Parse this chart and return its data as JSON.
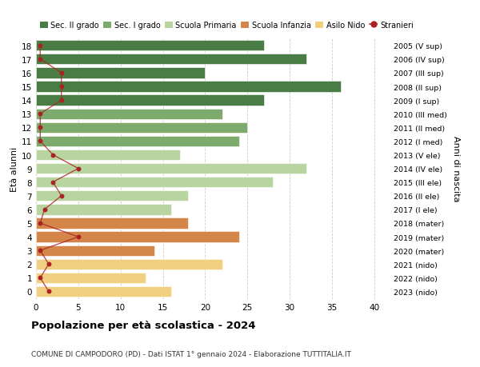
{
  "ages": [
    18,
    17,
    16,
    15,
    14,
    13,
    12,
    11,
    10,
    9,
    8,
    7,
    6,
    5,
    4,
    3,
    2,
    1,
    0
  ],
  "values": [
    27,
    32,
    20,
    36,
    27,
    22,
    25,
    24,
    17,
    32,
    28,
    18,
    16,
    18,
    24,
    14,
    22,
    13,
    16
  ],
  "stranieri": [
    0.5,
    0.5,
    3,
    3,
    3,
    0.5,
    0.5,
    0.5,
    2,
    5,
    2,
    3,
    1,
    0.5,
    5,
    0.5,
    1.5,
    0.5,
    1.5
  ],
  "bar_colors": [
    "#4a7c45",
    "#4a7c45",
    "#4a7c45",
    "#4a7c45",
    "#4a7c45",
    "#7dab6e",
    "#7dab6e",
    "#7dab6e",
    "#b8d4a0",
    "#b8d4a0",
    "#b8d4a0",
    "#b8d4a0",
    "#b8d4a0",
    "#d4854a",
    "#d4854a",
    "#d4854a",
    "#f0d080",
    "#f0d080",
    "#f0d080"
  ],
  "right_labels": [
    "2005 (V sup)",
    "2006 (IV sup)",
    "2007 (III sup)",
    "2008 (II sup)",
    "2009 (I sup)",
    "2010 (III med)",
    "2011 (II med)",
    "2012 (I med)",
    "2013 (V ele)",
    "2014 (IV ele)",
    "2015 (III ele)",
    "2016 (II ele)",
    "2017 (I ele)",
    "2018 (mater)",
    "2019 (mater)",
    "2020 (mater)",
    "2021 (nido)",
    "2022 (nido)",
    "2023 (nido)"
  ],
  "legend_labels": [
    "Sec. II grado",
    "Sec. I grado",
    "Scuola Primaria",
    "Scuola Infanzia",
    "Asilo Nido",
    "Stranieri"
  ],
  "legend_colors": [
    "#4a7c45",
    "#7dab6e",
    "#b8d4a0",
    "#d4854a",
    "#f0d080",
    "#aa2222"
  ],
  "xlabel_left": "Età alunni",
  "xlabel_right": "Anni di nascita",
  "title": "Popolazione per età scolastica - 2024",
  "subtitle": "COMUNE DI CAMPODORO (PD) - Dati ISTAT 1° gennaio 2024 - Elaborazione TUTTITALIA.IT",
  "xlim": [
    0,
    42
  ],
  "grid_color": "#cccccc",
  "background_color": "#ffffff",
  "stranieri_color": "#aa2222"
}
